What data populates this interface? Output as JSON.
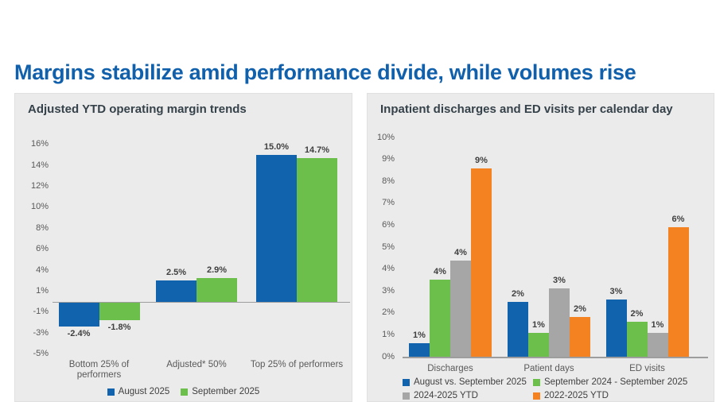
{
  "page": {
    "title": "Margins stabilize amid performance divide, while volumes rise"
  },
  "colors": {
    "title_blue": "#1060ac",
    "bar_blue": "#1263ad",
    "bar_green": "#6cbf4b",
    "bar_gray": "#a6a6a6",
    "bar_orange": "#f58220",
    "panel_bg": "#ebebeb",
    "axis_text": "#595959",
    "baseline_gray": "#9d9d9d"
  },
  "chart_data": [
    {
      "type": "bar",
      "title": "Adjusted YTD operating margin trends",
      "categories": [
        "Bottom 25% of performers",
        "Adjusted* 50%",
        "Top 25% of performers"
      ],
      "series": [
        {
          "name": "August 2025",
          "color": "#1263ad",
          "values": [
            -2.4,
            2.5,
            15.0
          ],
          "labels": [
            "-2.4%",
            "2.5%",
            "15.0%"
          ]
        },
        {
          "name": "September 2025",
          "color": "#6cbf4b",
          "values": [
            -1.8,
            2.9,
            14.7
          ],
          "labels": [
            "-1.8%",
            "2.9%",
            "14.7%"
          ]
        }
      ],
      "y_ticks": [
        "16%",
        "14%",
        "12%",
        "10%",
        "8%",
        "6%",
        "4%",
        "1%",
        "-1%",
        "-3%",
        "-5%"
      ],
      "y_tick_values": [
        16,
        14,
        12,
        10,
        8,
        6,
        4,
        1,
        -1,
        -3,
        -5
      ],
      "ylim": [
        -5,
        16
      ],
      "grid": false,
      "legend_position": "bottom-center"
    },
    {
      "type": "bar",
      "title": "Inpatient discharges and ED visits per calendar day",
      "categories": [
        "Discharges",
        "Patient days",
        "ED visits"
      ],
      "series": [
        {
          "name": "August vs. September 2025",
          "color": "#1263ad",
          "values": [
            0.6,
            2.5,
            2.6
          ],
          "labels": [
            "1%",
            "2%",
            "3%"
          ]
        },
        {
          "name": "September 2024 - September 2025",
          "color": "#6cbf4b",
          "values": [
            3.5,
            1.1,
            1.6
          ],
          "labels": [
            "4%",
            "1%",
            "2%"
          ]
        },
        {
          "name": "2024-2025 YTD",
          "color": "#a6a6a6",
          "values": [
            4.4,
            3.1,
            1.1
          ],
          "labels": [
            "4%",
            "3%",
            "1%"
          ]
        },
        {
          "name": "2022-2025 YTD",
          "color": "#f58220",
          "values": [
            8.6,
            1.8,
            5.9
          ],
          "labels": [
            "9%",
            "2%",
            "6%"
          ]
        }
      ],
      "y_ticks": [
        "10%",
        "9%",
        "8%",
        "7%",
        "6%",
        "5%",
        "4%",
        "3%",
        "2%",
        "1%",
        "0%"
      ],
      "y_tick_values": [
        10,
        9,
        8,
        7,
        6,
        5,
        4,
        3,
        2,
        1,
        0
      ],
      "ylim": [
        0,
        10
      ],
      "grid": false,
      "legend_position": "bottom-left-2col"
    }
  ]
}
